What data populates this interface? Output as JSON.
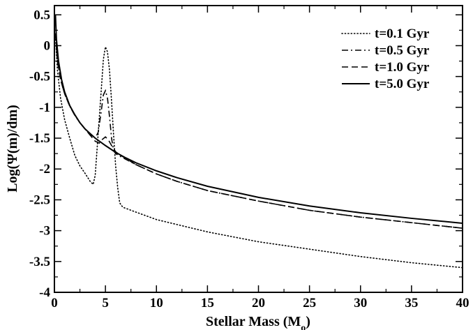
{
  "chart_data": {
    "type": "line",
    "xlabel": "Stellar Mass (M",
    "xlabel_sub": "o",
    "xlabel_close": ")",
    "ylabel": "Log(Ψ(m)/dm)",
    "xlim": [
      0,
      40
    ],
    "ylim": [
      -4,
      0.65
    ],
    "xticks": [
      0,
      5,
      10,
      15,
      20,
      25,
      30,
      35,
      40
    ],
    "yticks": [
      0.5,
      0,
      -0.5,
      -1,
      -1.5,
      -2,
      -2.5,
      -3,
      -3.5,
      -4
    ],
    "ytick_labels": [
      "0.5",
      "0",
      "-0.5",
      "-1",
      "-1.5",
      "-2",
      "-2.5",
      "-3",
      "-3.5",
      "-4"
    ],
    "grid": false,
    "legend_position": "top-right",
    "series": [
      {
        "name": "t=0.1 Gyr",
        "style": "dotted",
        "points": [
          [
            0.1,
            0.15
          ],
          [
            0.3,
            -0.4
          ],
          [
            0.6,
            -0.85
          ],
          [
            1,
            -1.2
          ],
          [
            1.5,
            -1.5
          ],
          [
            2,
            -1.78
          ],
          [
            2.5,
            -1.95
          ],
          [
            3,
            -2.07
          ],
          [
            3.5,
            -2.2
          ],
          [
            3.8,
            -2.25
          ],
          [
            4.0,
            -2.1
          ],
          [
            4.3,
            -1.4
          ],
          [
            4.6,
            -0.7
          ],
          [
            4.8,
            -0.22
          ],
          [
            5.0,
            -0.02
          ],
          [
            5.2,
            -0.1
          ],
          [
            5.4,
            -0.4
          ],
          [
            5.6,
            -0.9
          ],
          [
            5.8,
            -1.45
          ],
          [
            6.0,
            -1.95
          ],
          [
            6.2,
            -2.3
          ],
          [
            6.4,
            -2.55
          ],
          [
            6.7,
            -2.62
          ],
          [
            8,
            -2.7
          ],
          [
            10,
            -2.82
          ],
          [
            12,
            -2.9
          ],
          [
            15,
            -3.02
          ],
          [
            20,
            -3.18
          ],
          [
            25,
            -3.3
          ],
          [
            30,
            -3.42
          ],
          [
            35,
            -3.52
          ],
          [
            40,
            -3.6
          ]
        ]
      },
      {
        "name": "t=0.5 Gyr",
        "style": "dashdot",
        "points": [
          [
            0.1,
            0.2
          ],
          [
            0.3,
            -0.25
          ],
          [
            0.6,
            -0.55
          ],
          [
            1,
            -0.78
          ],
          [
            1.5,
            -0.98
          ],
          [
            2,
            -1.13
          ],
          [
            2.5,
            -1.25
          ],
          [
            3,
            -1.35
          ],
          [
            3.5,
            -1.45
          ],
          [
            4.0,
            -1.5
          ],
          [
            4.3,
            -1.4
          ],
          [
            4.6,
            -1.05
          ],
          [
            4.8,
            -0.8
          ],
          [
            5.0,
            -0.73
          ],
          [
            5.2,
            -0.85
          ],
          [
            5.4,
            -1.15
          ],
          [
            5.6,
            -1.5
          ],
          [
            5.8,
            -1.7
          ],
          [
            6.0,
            -1.75
          ],
          [
            6.5,
            -1.8
          ],
          [
            8,
            -1.93
          ],
          [
            10,
            -2.08
          ],
          [
            12,
            -2.2
          ],
          [
            15,
            -2.35
          ],
          [
            20,
            -2.52
          ],
          [
            25,
            -2.67
          ],
          [
            30,
            -2.78
          ],
          [
            35,
            -2.87
          ],
          [
            40,
            -2.96
          ]
        ]
      },
      {
        "name": "t=1.0 Gyr",
        "style": "dashed",
        "points": [
          [
            0.1,
            0.2
          ],
          [
            0.3,
            -0.25
          ],
          [
            0.6,
            -0.55
          ],
          [
            1,
            -0.78
          ],
          [
            1.5,
            -0.98
          ],
          [
            2,
            -1.13
          ],
          [
            2.5,
            -1.25
          ],
          [
            3,
            -1.35
          ],
          [
            3.5,
            -1.45
          ],
          [
            4.0,
            -1.55
          ],
          [
            4.4,
            -1.58
          ],
          [
            4.7,
            -1.52
          ],
          [
            5.0,
            -1.48
          ],
          [
            5.3,
            -1.53
          ],
          [
            5.6,
            -1.62
          ],
          [
            6.0,
            -1.72
          ],
          [
            6.5,
            -1.78
          ],
          [
            8,
            -1.93
          ],
          [
            10,
            -2.08
          ],
          [
            12,
            -2.2
          ],
          [
            15,
            -2.35
          ],
          [
            20,
            -2.52
          ],
          [
            25,
            -2.67
          ],
          [
            30,
            -2.78
          ],
          [
            35,
            -2.87
          ],
          [
            40,
            -2.96
          ]
        ]
      },
      {
        "name": "t=5.0 Gyr",
        "style": "solid",
        "points": [
          [
            0.1,
            0.5
          ],
          [
            0.2,
            0.1
          ],
          [
            0.4,
            -0.25
          ],
          [
            0.7,
            -0.55
          ],
          [
            1,
            -0.75
          ],
          [
            1.5,
            -0.97
          ],
          [
            2,
            -1.12
          ],
          [
            2.5,
            -1.25
          ],
          [
            3,
            -1.35
          ],
          [
            4,
            -1.5
          ],
          [
            5,
            -1.62
          ],
          [
            6,
            -1.73
          ],
          [
            7,
            -1.82
          ],
          [
            8,
            -1.9
          ],
          [
            10,
            -2.03
          ],
          [
            12,
            -2.14
          ],
          [
            15,
            -2.28
          ],
          [
            20,
            -2.46
          ],
          [
            25,
            -2.6
          ],
          [
            30,
            -2.71
          ],
          [
            35,
            -2.8
          ],
          [
            40,
            -2.88
          ]
        ]
      }
    ]
  }
}
